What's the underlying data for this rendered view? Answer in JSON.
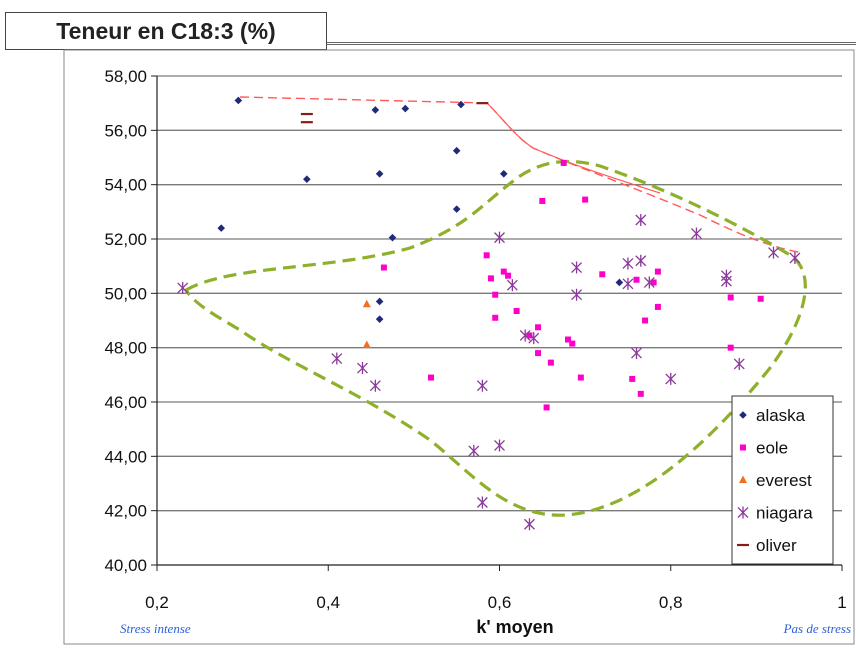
{
  "chart_data": {
    "type": "scatter",
    "title": "Teneur en C18:3  (%)",
    "xlabel": "k' moyen",
    "ylabel": "",
    "xlim": [
      0.2,
      1.0
    ],
    "ylim": [
      40,
      58
    ],
    "x_ticks": [
      "0,2",
      "0,4",
      "0,6",
      "0,8",
      "1"
    ],
    "y_ticks": [
      "40,00",
      "42,00",
      "44,00",
      "46,00",
      "48,00",
      "50,00",
      "52,00",
      "54,00",
      "56,00",
      "58,00"
    ],
    "grid": "horizontal",
    "legend_position": "bottom-right",
    "annotations": {
      "left": "Stress intense",
      "right": "Pas de stress"
    },
    "series": [
      {
        "name": "alaska",
        "marker": "diamond",
        "color": "#1f2a7a",
        "points": [
          [
            0.275,
            52.4
          ],
          [
            0.295,
            57.1
          ],
          [
            0.375,
            54.2
          ],
          [
            0.455,
            56.75
          ],
          [
            0.46,
            54.4
          ],
          [
            0.49,
            56.8
          ],
          [
            0.55,
            55.25
          ],
          [
            0.55,
            53.1
          ],
          [
            0.555,
            56.95
          ],
          [
            0.605,
            54.4
          ],
          [
            0.46,
            49.7
          ],
          [
            0.46,
            49.05
          ],
          [
            0.475,
            52.05
          ],
          [
            0.74,
            50.4
          ]
        ]
      },
      {
        "name": "eole",
        "marker": "square",
        "color": "#ff00cc",
        "points": [
          [
            0.465,
            50.95
          ],
          [
            0.52,
            46.9
          ],
          [
            0.585,
            51.4
          ],
          [
            0.59,
            50.55
          ],
          [
            0.595,
            49.95
          ],
          [
            0.595,
            49.1
          ],
          [
            0.605,
            50.8
          ],
          [
            0.61,
            50.65
          ],
          [
            0.62,
            49.35
          ],
          [
            0.635,
            48.45
          ],
          [
            0.645,
            48.75
          ],
          [
            0.645,
            47.8
          ],
          [
            0.65,
            53.4
          ],
          [
            0.655,
            45.8
          ],
          [
            0.66,
            47.45
          ],
          [
            0.675,
            54.8
          ],
          [
            0.68,
            48.3
          ],
          [
            0.685,
            48.15
          ],
          [
            0.695,
            46.9
          ],
          [
            0.7,
            53.45
          ],
          [
            0.72,
            50.7
          ],
          [
            0.755,
            46.85
          ],
          [
            0.76,
            50.5
          ],
          [
            0.765,
            46.3
          ],
          [
            0.77,
            49.0
          ],
          [
            0.78,
            50.4
          ],
          [
            0.785,
            50.8
          ],
          [
            0.785,
            49.5
          ],
          [
            0.87,
            48.0
          ],
          [
            0.87,
            49.85
          ],
          [
            0.905,
            49.8
          ]
        ]
      },
      {
        "name": "everest",
        "marker": "triangle",
        "color": "#f07020",
        "points": [
          [
            0.445,
            49.6
          ],
          [
            0.445,
            48.1
          ]
        ]
      },
      {
        "name": "niagara",
        "marker": "asterisk",
        "color": "#8a3a9a",
        "points": [
          [
            0.23,
            50.2
          ],
          [
            0.41,
            47.6
          ],
          [
            0.44,
            47.25
          ],
          [
            0.455,
            46.6
          ],
          [
            0.57,
            44.2
          ],
          [
            0.58,
            46.6
          ],
          [
            0.58,
            42.3
          ],
          [
            0.6,
            44.4
          ],
          [
            0.6,
            52.05
          ],
          [
            0.615,
            50.3
          ],
          [
            0.63,
            48.45
          ],
          [
            0.64,
            48.35
          ],
          [
            0.635,
            41.5
          ],
          [
            0.69,
            50.95
          ],
          [
            0.69,
            49.95
          ],
          [
            0.75,
            50.35
          ],
          [
            0.75,
            51.1
          ],
          [
            0.76,
            47.8
          ],
          [
            0.765,
            51.2
          ],
          [
            0.765,
            52.7
          ],
          [
            0.775,
            50.4
          ],
          [
            0.8,
            46.85
          ],
          [
            0.83,
            52.2
          ],
          [
            0.865,
            50.65
          ],
          [
            0.865,
            50.45
          ],
          [
            0.88,
            47.4
          ],
          [
            0.92,
            51.5
          ],
          [
            0.945,
            51.3
          ]
        ]
      },
      {
        "name": "oliver",
        "marker": "dash",
        "color": "#8b1a1a",
        "points": [
          [
            0.375,
            56.6
          ],
          [
            0.375,
            56.3
          ],
          [
            0.58,
            57.0
          ]
        ]
      }
    ],
    "legend": [
      "alaska",
      "eole",
      "everest",
      "niagara",
      "oliver"
    ]
  }
}
